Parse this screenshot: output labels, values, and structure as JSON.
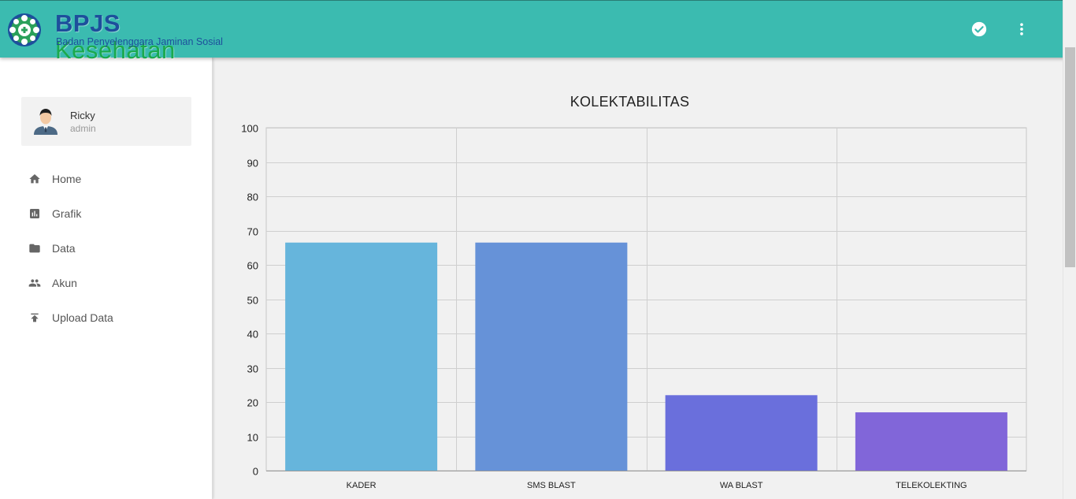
{
  "header": {
    "brand_primary": "BPJS",
    "brand_secondary": "Kesehatan",
    "brand_subtitle": "Badan Penyelenggara Jaminan Sosial",
    "accent_color": "#3bbbb0",
    "actions": [
      {
        "icon": "check-circle-icon"
      },
      {
        "icon": "more-vert-icon"
      }
    ]
  },
  "user": {
    "name": "Ricky",
    "role": "admin",
    "avatar_icon": "user-avatar-icon"
  },
  "sidebar": {
    "items": [
      {
        "label": "Home",
        "icon": "home-icon"
      },
      {
        "label": "Grafik",
        "icon": "bar-chart-icon"
      },
      {
        "label": "Data",
        "icon": "folder-icon"
      },
      {
        "label": "Akun",
        "icon": "people-icon"
      },
      {
        "label": "Upload Data",
        "icon": "upload-icon"
      }
    ]
  },
  "chart_data": {
    "type": "bar",
    "title": "KOLEKTABILITAS",
    "categories": [
      "KADER",
      "SMS BLAST",
      "WA BLAST",
      "TELEKOLEKTING"
    ],
    "values": [
      66.5,
      66.5,
      22,
      17
    ],
    "colors": [
      "#66b5dc",
      "#6692d8",
      "#6a6fdc",
      "#8166d9"
    ],
    "ylim": [
      0,
      100
    ],
    "yticks": [
      0,
      10,
      20,
      30,
      40,
      50,
      60,
      70,
      80,
      90,
      100
    ],
    "grid": true,
    "xlabel": "",
    "ylabel": ""
  }
}
